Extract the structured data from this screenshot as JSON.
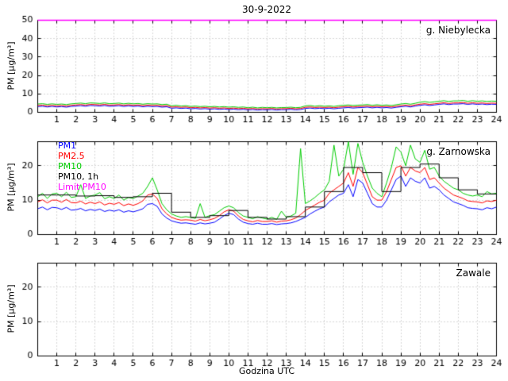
{
  "title": "30-9-2022",
  "xlabel": "Godzina UTC",
  "ylabel": "PM [µg/m³]",
  "colors": {
    "frame": "#000000",
    "grid": "#b0b0b0",
    "limit": "#ff00ff"
  },
  "legend": [
    {
      "label": "PM1",
      "color": "#0000ff"
    },
    {
      "label": "PM2.5",
      "color": "#ff0000"
    },
    {
      "label": "PM10",
      "color": "#00cc00"
    },
    {
      "label": "PM10, 1h",
      "color": "#000000"
    },
    {
      "label": "Limit PM10",
      "color": "#ff00ff"
    }
  ],
  "x": {
    "min": 0,
    "max": 24,
    "ticks": [
      1,
      2,
      3,
      4,
      5,
      6,
      7,
      8,
      9,
      10,
      11,
      12,
      13,
      14,
      15,
      16,
      17,
      18,
      19,
      20,
      21,
      22,
      23,
      24
    ]
  },
  "chart_data": [
    {
      "type": "line",
      "station": "g. Niebylecka",
      "ylim": [
        0,
        50
      ],
      "yticks": [
        0,
        10,
        20,
        30,
        40,
        50
      ],
      "limit_pm10": 50,
      "series": [
        {
          "name": "PM1",
          "color": "#0000ff",
          "values": [
            3.1,
            3.3,
            2.9,
            3.2,
            2.9,
            3.1,
            2.8,
            3.2,
            3.4,
            3.6,
            3.3,
            3.7,
            3.6,
            3.4,
            3.7,
            3.3,
            3.4,
            3.6,
            3.2,
            3.5,
            3.2,
            3.4,
            3.0,
            3.3,
            3.1,
            3.2,
            2.8,
            3.0,
            2.2,
            2.4,
            2.1,
            2.3,
            1.9,
            2.1,
            1.8,
            2.0,
            1.7,
            1.9,
            1.6,
            1.8,
            1.5,
            1.7,
            1.4,
            1.6,
            1.3,
            1.5,
            1.2,
            1.4,
            1.3,
            1.5,
            1.2,
            1.4,
            1.4,
            1.6,
            1.3,
            1.5,
            2.1,
            2.3,
            2.0,
            2.2,
            2.0,
            2.2,
            1.9,
            2.2,
            2.4,
            2.6,
            2.3,
            2.5,
            2.6,
            2.8,
            2.4,
            2.7,
            2.4,
            2.6,
            2.3,
            2.7,
            3.0,
            3.3,
            2.9,
            3.4,
            3.8,
            4.1,
            3.7,
            4.0,
            4.3,
            4.6,
            4.2,
            4.5,
            4.5,
            4.7,
            4.3,
            4.6,
            4.3,
            4.5,
            4.2,
            4.4,
            4.3
          ]
        },
        {
          "name": "PM2.5",
          "color": "#ff0000",
          "values": [
            3.7,
            3.9,
            3.5,
            3.8,
            3.5,
            3.7,
            3.4,
            3.8,
            4.0,
            4.2,
            3.9,
            4.3,
            4.2,
            4.0,
            4.3,
            3.9,
            4.0,
            4.2,
            3.8,
            4.1,
            3.8,
            4.0,
            3.6,
            3.9,
            3.7,
            3.8,
            3.4,
            3.6,
            2.8,
            3.0,
            2.7,
            2.9,
            2.5,
            2.7,
            2.4,
            2.6,
            2.3,
            2.5,
            2.2,
            2.4,
            2.1,
            2.3,
            2.0,
            2.2,
            1.9,
            2.1,
            1.8,
            2.0,
            1.9,
            2.1,
            1.8,
            2.0,
            2.0,
            2.2,
            1.9,
            2.1,
            2.7,
            2.9,
            2.6,
            2.8,
            2.6,
            2.8,
            2.5,
            2.8,
            3.0,
            3.2,
            2.9,
            3.1,
            3.2,
            3.4,
            3.0,
            3.3,
            3.0,
            3.2,
            2.9,
            3.3,
            3.6,
            3.9,
            3.5,
            4.0,
            4.4,
            4.7,
            4.3,
            4.6,
            4.9,
            5.2,
            4.8,
            5.1,
            5.1,
            5.3,
            4.9,
            5.2,
            4.9,
            5.1,
            4.8,
            5.0,
            4.9
          ]
        },
        {
          "name": "PM10",
          "color": "#00cc00",
          "values": [
            4.5,
            4.7,
            4.3,
            4.6,
            4.3,
            4.5,
            4.2,
            4.6,
            4.8,
            5.0,
            4.7,
            5.1,
            5.0,
            4.8,
            5.1,
            4.7,
            4.8,
            5.0,
            4.6,
            4.9,
            4.6,
            4.8,
            4.4,
            4.7,
            4.5,
            4.6,
            4.2,
            4.4,
            3.5,
            3.8,
            3.4,
            3.6,
            3.2,
            3.4,
            3.1,
            3.3,
            3.0,
            3.2,
            2.9,
            3.1,
            2.8,
            3.0,
            2.7,
            2.9,
            2.5,
            2.8,
            2.4,
            2.7,
            2.5,
            2.7,
            2.4,
            2.6,
            2.6,
            2.8,
            2.5,
            2.7,
            3.5,
            3.7,
            3.3,
            3.6,
            3.3,
            3.5,
            3.2,
            3.6,
            3.8,
            4.0,
            3.7,
            3.9,
            4.0,
            4.2,
            3.8,
            4.1,
            3.8,
            4.0,
            3.7,
            4.1,
            4.5,
            4.8,
            4.4,
            4.9,
            5.5,
            5.8,
            5.4,
            5.7,
            6.0,
            6.3,
            5.9,
            6.2,
            6.2,
            6.4,
            6.0,
            6.3,
            6.0,
            6.2,
            5.9,
            6.1,
            6.0
          ]
        }
      ]
    },
    {
      "type": "line",
      "station": "g. Zarnowska",
      "ylim": [
        0,
        27
      ],
      "yticks": [
        0,
        10,
        20
      ],
      "limit_pm10": 50,
      "series": [
        {
          "name": "PM1",
          "color": "#0000ff",
          "values": [
            7.5,
            8.0,
            7.2,
            7.9,
            7.8,
            7.3,
            7.9,
            7.1,
            7.2,
            7.6,
            6.9,
            7.3,
            7.0,
            7.4,
            6.7,
            7.1,
            6.8,
            7.2,
            6.5,
            6.9,
            6.6,
            7.0,
            7.5,
            8.8,
            9.0,
            8.2,
            6.0,
            4.8,
            4.0,
            3.6,
            3.3,
            3.4,
            3.2,
            3.0,
            3.4,
            3.1,
            3.3,
            3.6,
            4.5,
            5.5,
            6.2,
            5.8,
            4.5,
            3.6,
            3.2,
            3.0,
            3.3,
            3.0,
            3.0,
            3.2,
            2.9,
            3.1,
            3.2,
            3.4,
            3.8,
            4.4,
            5.0,
            6.0,
            6.8,
            7.5,
            8.0,
            9.5,
            10.5,
            11.5,
            12.0,
            14.5,
            11.0,
            16.0,
            15.0,
            12.0,
            9.0,
            8.0,
            8.0,
            10.0,
            13.0,
            16.0,
            17.0,
            14.0,
            16.5,
            15.5,
            15.0,
            16.5,
            13.5,
            14.0,
            13.0,
            11.5,
            10.5,
            9.5,
            9.0,
            8.5,
            7.8,
            7.6,
            7.5,
            7.2,
            7.8,
            7.5,
            8.0
          ]
        },
        {
          "name": "PM2.5",
          "color": "#ff0000",
          "values": [
            9.5,
            10.1,
            9.2,
            10.0,
            10.0,
            9.4,
            10.2,
            9.3,
            9.2,
            9.7,
            8.9,
            9.4,
            9.0,
            9.5,
            8.6,
            9.1,
            8.8,
            9.3,
            8.4,
            8.9,
            8.5,
            9.0,
            9.8,
            11.5,
            11.8,
            10.5,
            7.5,
            6.0,
            5.0,
            4.5,
            4.2,
            4.3,
            4.2,
            3.9,
            4.4,
            4.0,
            4.3,
            4.7,
            5.5,
            6.6,
            7.2,
            6.8,
            5.4,
            4.4,
            4.0,
            3.7,
            4.1,
            3.8,
            3.8,
            4.0,
            3.6,
            3.9,
            4.0,
            4.3,
            4.8,
            5.8,
            7.0,
            7.8,
            8.6,
            9.4,
            10.0,
            12.0,
            13.0,
            14.0,
            15.0,
            18.0,
            14.0,
            19.5,
            18.0,
            14.5,
            11.0,
            10.0,
            10.0,
            12.5,
            16.0,
            19.5,
            20.0,
            17.0,
            19.5,
            18.5,
            18.0,
            19.5,
            16.0,
            16.5,
            15.0,
            13.5,
            12.5,
            11.5,
            11.0,
            10.5,
            9.8,
            9.6,
            9.5,
            9.2,
            9.8,
            9.6,
            10.0
          ]
        },
        {
          "name": "PM10",
          "color": "#00cc00",
          "values": [
            11.0,
            12.0,
            10.5,
            11.8,
            12.0,
            11.0,
            12.3,
            10.8,
            11.0,
            14.5,
            10.5,
            11.2,
            11.5,
            12.2,
            10.4,
            11.0,
            10.5,
            11.5,
            10.0,
            10.8,
            10.5,
            11.2,
            12.0,
            14.0,
            16.5,
            13.0,
            9.0,
            7.2,
            6.0,
            5.4,
            5.0,
            5.2,
            5.0,
            4.7,
            9.0,
            5.0,
            5.5,
            5.8,
            6.8,
            7.8,
            8.3,
            7.8,
            6.4,
            5.4,
            5.0,
            4.6,
            5.2,
            4.8,
            4.5,
            5.0,
            4.4,
            6.8,
            5.0,
            5.4,
            6.2,
            25.0,
            9.0,
            9.8,
            10.8,
            12.0,
            13.0,
            15.5,
            26.0,
            17.0,
            19.0,
            27.0,
            17.5,
            26.5,
            21.0,
            17.0,
            13.5,
            12.0,
            11.0,
            15.0,
            19.5,
            25.5,
            24.0,
            20.0,
            26.0,
            22.0,
            21.0,
            24.5,
            19.0,
            19.5,
            17.0,
            15.5,
            14.5,
            13.5,
            13.0,
            12.0,
            11.5,
            11.2,
            11.5,
            11.0,
            12.5,
            11.8,
            12.0
          ]
        }
      ],
      "step": {
        "name": "PM10, 1h",
        "color": "#000000",
        "values": [
          11.5,
          11.5,
          11.2,
          11.3,
          10.8,
          11.0,
          12.0,
          6.5,
          5.0,
          5.5,
          7.0,
          5.0,
          4.5,
          5.2,
          8.0,
          12.5,
          19.5,
          18.0,
          12.5,
          19.5,
          20.5,
          16.5,
          13.0,
          11.8
        ]
      }
    },
    {
      "type": "line",
      "station": "Zawale",
      "ylim": [
        0,
        27
      ],
      "yticks": [
        0,
        10,
        20
      ],
      "series": []
    }
  ]
}
